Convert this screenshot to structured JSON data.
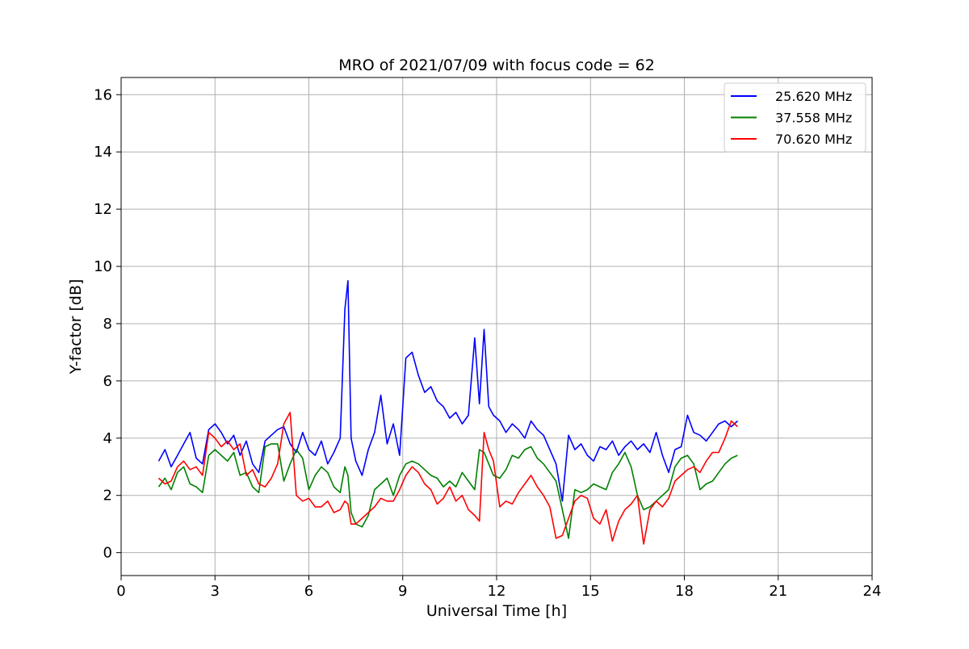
{
  "chart_data": {
    "type": "line",
    "title": "MRO of 2021/07/09 with focus code = 62",
    "xlabel": "Universal Time [h]",
    "ylabel": "Y-factor [dB]",
    "xlim": [
      0,
      24
    ],
    "ylim": [
      -0.8,
      16.6
    ],
    "xticks": [
      0,
      3,
      6,
      9,
      12,
      15,
      18,
      21,
      24
    ],
    "yticks": [
      0,
      2,
      4,
      6,
      8,
      10,
      12,
      14,
      16
    ],
    "grid": true,
    "legend_position": "top-right",
    "series": [
      {
        "name": "25.620 MHz",
        "color": "#0000ff",
        "x": [
          1.2,
          1.4,
          1.6,
          1.8,
          2.0,
          2.2,
          2.4,
          2.6,
          2.8,
          3.0,
          3.2,
          3.4,
          3.6,
          3.8,
          4.0,
          4.2,
          4.4,
          4.6,
          4.8,
          5.0,
          5.2,
          5.4,
          5.6,
          5.8,
          6.0,
          6.2,
          6.4,
          6.6,
          6.8,
          7.0,
          7.15,
          7.25,
          7.35,
          7.5,
          7.7,
          7.9,
          8.1,
          8.3,
          8.5,
          8.7,
          8.9,
          9.1,
          9.3,
          9.5,
          9.7,
          9.9,
          10.1,
          10.3,
          10.5,
          10.7,
          10.9,
          11.1,
          11.3,
          11.45,
          11.6,
          11.75,
          11.9,
          12.1,
          12.3,
          12.5,
          12.7,
          12.9,
          13.1,
          13.3,
          13.5,
          13.7,
          13.9,
          14.1,
          14.3,
          14.5,
          14.7,
          14.9,
          15.1,
          15.3,
          15.5,
          15.7,
          15.9,
          16.1,
          16.3,
          16.5,
          16.7,
          16.9,
          17.1,
          17.3,
          17.5,
          17.7,
          17.9,
          18.1,
          18.3,
          18.5,
          18.7,
          18.9,
          19.1,
          19.3,
          19.5,
          19.7
        ],
        "y": [
          3.2,
          3.6,
          3.0,
          3.4,
          3.8,
          4.2,
          3.3,
          3.1,
          4.3,
          4.5,
          4.2,
          3.8,
          4.1,
          3.4,
          3.9,
          3.1,
          2.8,
          3.9,
          4.1,
          4.3,
          4.4,
          3.8,
          3.5,
          4.2,
          3.6,
          3.4,
          3.9,
          3.1,
          3.5,
          4.0,
          8.5,
          9.5,
          4.0,
          3.2,
          2.7,
          3.6,
          4.2,
          5.5,
          3.8,
          4.5,
          3.4,
          6.8,
          7.0,
          6.2,
          5.6,
          5.8,
          5.3,
          5.1,
          4.7,
          4.9,
          4.5,
          4.8,
          7.5,
          5.2,
          7.8,
          5.1,
          4.8,
          4.6,
          4.2,
          4.5,
          4.3,
          4.0,
          4.6,
          4.3,
          4.1,
          3.6,
          3.1,
          1.8,
          4.1,
          3.6,
          3.8,
          3.4,
          3.2,
          3.7,
          3.6,
          3.9,
          3.4,
          3.7,
          3.9,
          3.6,
          3.8,
          3.5,
          4.2,
          3.4,
          2.8,
          3.6,
          3.7,
          4.8,
          4.2,
          4.1,
          3.9,
          4.2,
          4.5,
          4.6,
          4.4,
          4.6
        ]
      },
      {
        "name": "37.558 MHz",
        "color": "#008000",
        "x": [
          1.2,
          1.4,
          1.6,
          1.8,
          2.0,
          2.2,
          2.4,
          2.6,
          2.8,
          3.0,
          3.2,
          3.4,
          3.6,
          3.8,
          4.0,
          4.2,
          4.4,
          4.6,
          4.8,
          5.0,
          5.2,
          5.4,
          5.6,
          5.8,
          6.0,
          6.2,
          6.4,
          6.6,
          6.8,
          7.0,
          7.15,
          7.25,
          7.35,
          7.5,
          7.7,
          7.9,
          8.1,
          8.3,
          8.5,
          8.7,
          8.9,
          9.1,
          9.3,
          9.5,
          9.7,
          9.9,
          10.1,
          10.3,
          10.5,
          10.7,
          10.9,
          11.1,
          11.3,
          11.45,
          11.6,
          11.75,
          11.9,
          12.1,
          12.3,
          12.5,
          12.7,
          12.9,
          13.1,
          13.3,
          13.5,
          13.7,
          13.9,
          14.1,
          14.3,
          14.5,
          14.7,
          14.9,
          15.1,
          15.3,
          15.5,
          15.7,
          15.9,
          16.1,
          16.3,
          16.5,
          16.7,
          16.9,
          17.1,
          17.3,
          17.5,
          17.7,
          17.9,
          18.1,
          18.3,
          18.5,
          18.7,
          18.9,
          19.1,
          19.3,
          19.5,
          19.7
        ],
        "y": [
          2.3,
          2.6,
          2.2,
          2.8,
          3.0,
          2.4,
          2.3,
          2.1,
          3.4,
          3.6,
          3.4,
          3.2,
          3.5,
          2.7,
          2.8,
          2.3,
          2.1,
          3.7,
          3.8,
          3.8,
          2.5,
          3.1,
          3.6,
          3.3,
          2.2,
          2.7,
          3.0,
          2.8,
          2.3,
          2.1,
          3.0,
          2.7,
          1.4,
          1.0,
          0.9,
          1.3,
          2.2,
          2.4,
          2.6,
          2.0,
          2.7,
          3.1,
          3.2,
          3.1,
          2.9,
          2.7,
          2.6,
          2.3,
          2.5,
          2.3,
          2.8,
          2.5,
          2.2,
          3.6,
          3.5,
          3.1,
          2.7,
          2.6,
          2.9,
          3.4,
          3.3,
          3.6,
          3.7,
          3.3,
          3.1,
          2.8,
          2.5,
          1.5,
          0.5,
          2.2,
          2.1,
          2.2,
          2.4,
          2.3,
          2.2,
          2.8,
          3.1,
          3.5,
          3.0,
          2.0,
          1.5,
          1.6,
          1.8,
          2.0,
          2.2,
          3.0,
          3.3,
          3.4,
          3.1,
          2.2,
          2.4,
          2.5,
          2.8,
          3.1,
          3.3,
          3.4
        ]
      },
      {
        "name": "70.620 MHz",
        "color": "#ff0000",
        "x": [
          1.2,
          1.4,
          1.6,
          1.8,
          2.0,
          2.2,
          2.4,
          2.6,
          2.8,
          3.0,
          3.2,
          3.4,
          3.6,
          3.8,
          4.0,
          4.2,
          4.4,
          4.6,
          4.8,
          5.0,
          5.2,
          5.4,
          5.6,
          5.8,
          6.0,
          6.2,
          6.4,
          6.6,
          6.8,
          7.0,
          7.15,
          7.25,
          7.35,
          7.5,
          7.7,
          7.9,
          8.1,
          8.3,
          8.5,
          8.7,
          8.9,
          9.1,
          9.3,
          9.5,
          9.7,
          9.9,
          10.1,
          10.3,
          10.5,
          10.7,
          10.9,
          11.1,
          11.3,
          11.45,
          11.6,
          11.75,
          11.9,
          12.1,
          12.3,
          12.5,
          12.7,
          12.9,
          13.1,
          13.3,
          13.5,
          13.7,
          13.9,
          14.1,
          14.3,
          14.5,
          14.7,
          14.9,
          15.1,
          15.3,
          15.5,
          15.7,
          15.9,
          16.1,
          16.3,
          16.5,
          16.7,
          16.9,
          17.1,
          17.3,
          17.5,
          17.7,
          17.9,
          18.1,
          18.3,
          18.5,
          18.7,
          18.9,
          19.1,
          19.3,
          19.5,
          19.7
        ],
        "y": [
          2.6,
          2.4,
          2.5,
          3.0,
          3.2,
          2.9,
          3.0,
          2.7,
          4.2,
          4.0,
          3.7,
          3.9,
          3.6,
          3.8,
          2.7,
          2.9,
          2.4,
          2.3,
          2.6,
          3.1,
          4.5,
          4.9,
          2.0,
          1.8,
          1.9,
          1.6,
          1.6,
          1.8,
          1.4,
          1.5,
          1.8,
          1.7,
          1.0,
          1.0,
          1.2,
          1.4,
          1.6,
          1.9,
          1.8,
          1.8,
          2.2,
          2.7,
          3.0,
          2.8,
          2.4,
          2.2,
          1.7,
          1.9,
          2.3,
          1.8,
          2.0,
          1.5,
          1.3,
          1.1,
          4.2,
          3.6,
          3.2,
          1.6,
          1.8,
          1.7,
          2.1,
          2.4,
          2.7,
          2.3,
          2.0,
          1.6,
          0.5,
          0.6,
          1.2,
          1.8,
          2.0,
          1.9,
          1.2,
          1.0,
          1.5,
          0.4,
          1.1,
          1.5,
          1.7,
          2.0,
          0.3,
          1.5,
          1.8,
          1.6,
          1.9,
          2.5,
          2.7,
          2.9,
          3.0,
          2.8,
          3.2,
          3.5,
          3.5,
          4.0,
          4.6,
          4.4
        ]
      }
    ]
  }
}
